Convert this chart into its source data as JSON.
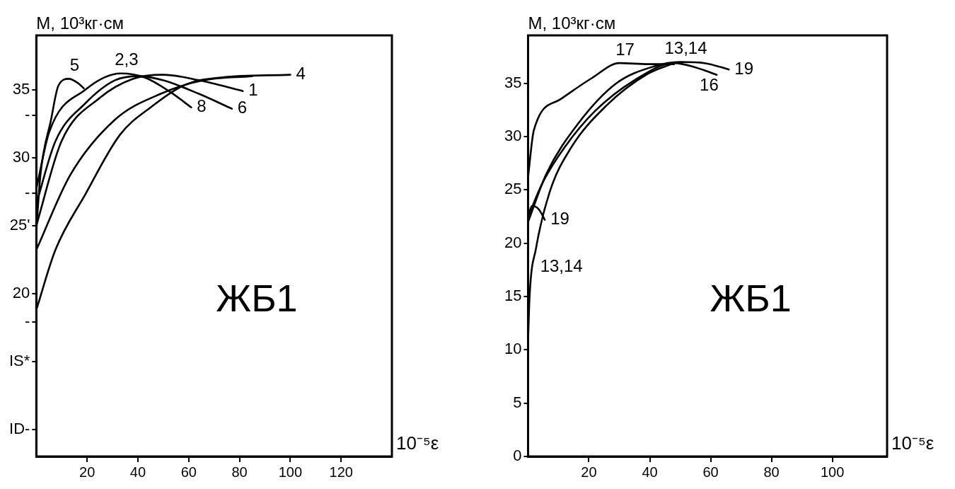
{
  "chart_data": [
    {
      "type": "line",
      "ylabel": "М, 10³кг·см",
      "xlabel": "10⁻⁵ε",
      "xlim": [
        0,
        140
      ],
      "ylim": [
        8,
        39
      ],
      "xticks": [
        20,
        40,
        60,
        80,
        100,
        120
      ],
      "yticks": [
        {
          "value": 35,
          "label": "35"
        },
        {
          "value": 33.1,
          "label": "-"
        },
        {
          "value": 30,
          "label": "30"
        },
        {
          "value": 27.4,
          "label": "-"
        },
        {
          "value": 25,
          "label": "25'"
        },
        {
          "value": 20,
          "label": "20"
        },
        {
          "value": 17.9,
          "label": "-"
        },
        {
          "value": 15,
          "label": "IS*"
        },
        {
          "value": 10,
          "label": "ID-"
        }
      ],
      "series": [
        {
          "color": "#000000",
          "x": [
            0,
            1.6,
            5.8,
            8.7,
            12.8,
            16.3,
            18.7
          ],
          "values": [
            24.6,
            28.7,
            32.8,
            35.3,
            35.8,
            35.5,
            35.1
          ]
        },
        {
          "color": "#000000",
          "x": [
            0,
            5.1,
            19.3,
            33.3,
            42.7,
            52.2,
            61
          ],
          "values": [
            27.7,
            31.9,
            35,
            36.2,
            35.9,
            34.9,
            33.7
          ]
        },
        {
          "color": "#000000",
          "x": [
            0,
            7.5,
            19.3,
            31,
            40.4,
            49.8,
            64,
            77
          ],
          "values": [
            26.6,
            31.2,
            34,
            35.7,
            36,
            35.7,
            34.7,
            33.6
          ]
        },
        {
          "color": "#000000",
          "x": [
            0,
            9.9,
            25,
            38,
            50,
            64,
            81.3
          ],
          "values": [
            25,
            31.2,
            34.4,
            35.8,
            36.1,
            35.7,
            34.9
          ]
        },
        {
          "color": "#000000",
          "x": [
            0,
            7.5,
            19.3,
            33,
            45,
            59,
            73,
            100
          ],
          "values": [
            18.8,
            23.2,
            27.3,
            31.7,
            33.7,
            35.4,
            35.9,
            36.1
          ]
        },
        {
          "color": "#000000",
          "x": [
            0,
            13.3,
            31,
            49,
            66,
            85
          ],
          "values": [
            23.2,
            28.7,
            32.8,
            34.7,
            35.7,
            36
          ]
        }
      ],
      "annotations": [
        {
          "text": "5",
          "x": 12.8,
          "y": 35.8
        },
        {
          "text": "2,3",
          "x": 33.3,
          "y": 36.2
        },
        {
          "text": "8",
          "x": 61,
          "y": 33.7
        },
        {
          "text": "6",
          "x": 77,
          "y": 33.6
        },
        {
          "text": "1",
          "x": 81.3,
          "y": 34.9
        },
        {
          "text": "4",
          "x": 100,
          "y": 36.1
        },
        "ЖБ1"
      ]
    },
    {
      "type": "line",
      "ylabel": "М, 10³кг·см",
      "xlabel": "10⁻⁵ε",
      "xlim": [
        0,
        118
      ],
      "ylim": [
        0,
        39.5
      ],
      "xticks": [
        20,
        40,
        60,
        80,
        100
      ],
      "yticks": [
        0,
        5,
        10,
        15,
        20,
        25,
        30,
        35
      ],
      "series": [
        {
          "color": "#000000",
          "x": [
            0,
            1.9,
            10.6,
            21,
            30,
            39.4,
            48
          ],
          "values": [
            26.2,
            30.6,
            33.5,
            35.5,
            36.9,
            36.8,
            36.8
          ]
        },
        {
          "color": "#000000",
          "x": [
            0,
            6,
            16.4,
            29,
            41.5,
            50,
            58,
            66
          ],
          "values": [
            22,
            26.5,
            31.2,
            35,
            36.6,
            37,
            36.9,
            36.3
          ]
        },
        {
          "color": "#000000",
          "x": [
            0,
            5,
            12,
            22,
            35,
            48,
            55,
            62
          ],
          "values": [
            22.5,
            25.8,
            29,
            32.4,
            35.3,
            36.9,
            36.5,
            35.8
          ]
        },
        {
          "color": "#000000",
          "x": [
            0,
            0.5,
            2.6,
            7.1,
            14,
            25.7,
            39.4,
            48
          ],
          "values": [
            10.8,
            15,
            19.5,
            24.8,
            28.9,
            32.9,
            35.9,
            36.9
          ]
        },
        {
          "color": "#000000",
          "x": [
            0,
            1.3,
            3.5,
            5.5
          ],
          "values": [
            22.5,
            23.5,
            23.2,
            22.2
          ]
        }
      ],
      "annotations": [
        {
          "text": "17",
          "x": 30,
          "y": 36.9
        },
        {
          "text": "13,14",
          "x": 50,
          "y": 37
        },
        {
          "text": "16",
          "x": 55,
          "y": 36.5
        },
        {
          "text": "19",
          "x": 66,
          "y": 36.3
        },
        {
          "text": "19",
          "x": 5.5,
          "y": 22.2
        },
        {
          "text": "13,14",
          "x": 2.6,
          "y": 19.5
        },
        "ЖБ1"
      ]
    }
  ]
}
